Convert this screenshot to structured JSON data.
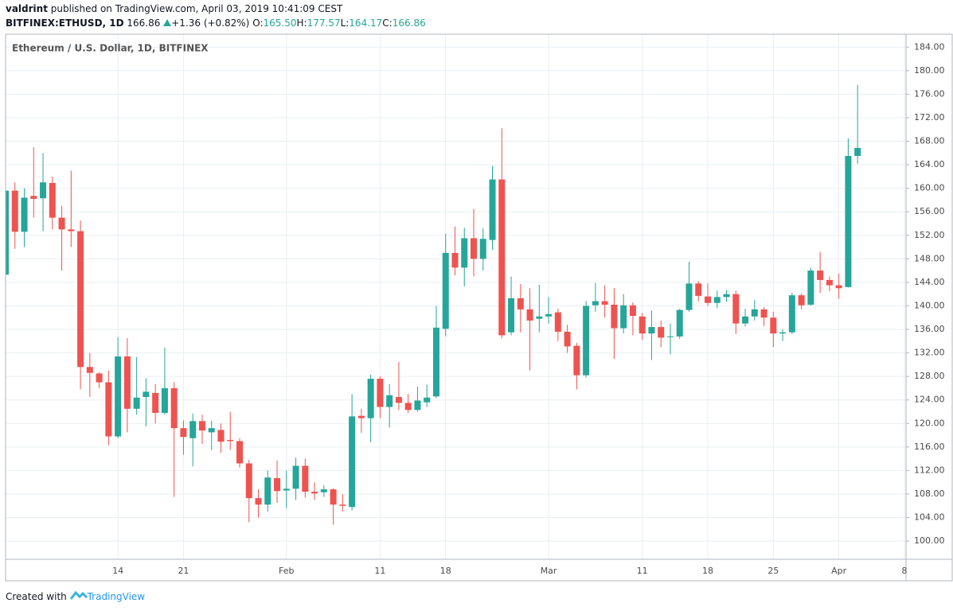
{
  "header": {
    "author": "valdrint",
    "published": "published on TradingView.com, April 03, 2019 10:41:09 CEST",
    "symbol": "BITFINEX:ETHUSD, 1D",
    "last": "166.86",
    "change": "+1.36 (+0.82%)",
    "ohlc": [
      {
        "label": "O:",
        "value": "165.50"
      },
      {
        "label": "H:",
        "value": "177.57"
      },
      {
        "label": "L:",
        "value": "164.17"
      },
      {
        "label": "C:",
        "value": "166.86"
      }
    ]
  },
  "footer": {
    "created": "Created with",
    "brand": "TradingView"
  },
  "chart_data": {
    "type": "candlestick",
    "title": "Ethereum / U.S. Dollar, 1D, BITFINEX",
    "up_color": "#26a69a",
    "down_color": "#ef5350",
    "grid": true,
    "categories": [
      null,
      null,
      null,
      null,
      null,
      null,
      null,
      null,
      null,
      null,
      null,
      null,
      "14",
      null,
      null,
      null,
      null,
      null,
      null,
      "21",
      null,
      null,
      null,
      null,
      null,
      null,
      null,
      null,
      null,
      null,
      "Feb",
      null,
      null,
      null,
      null,
      null,
      null,
      null,
      null,
      null,
      "11",
      null,
      null,
      null,
      null,
      null,
      null,
      "18",
      null,
      null,
      null,
      null,
      null,
      null,
      null,
      null,
      null,
      null,
      "Mar",
      null,
      null,
      null,
      null,
      null,
      null,
      null,
      null,
      null,
      "11",
      null,
      null,
      null,
      null,
      null,
      null,
      "18",
      null,
      null,
      null,
      null,
      null,
      null,
      "25",
      null,
      null,
      null,
      null,
      null,
      null,
      "Apr",
      null,
      null,
      null,
      null,
      null,
      null,
      "8"
    ],
    "open": [
      145.3,
      159.6,
      152.6,
      158.7,
      158.3,
      160.9,
      155,
      153,
      152.7,
      129.6,
      128.5,
      127,
      117.8,
      131.4,
      122.5,
      124.5,
      125.2,
      121.8,
      126,
      119.2,
      117.5,
      120.4,
      118.5,
      118.9,
      117.2,
      117,
      113.2,
      107.3,
      106.2,
      110.7,
      108.6,
      108.9,
      112.8,
      108.4,
      108.3,
      108.8,
      106.2,
      105.8,
      121.3,
      120.9,
      127.6,
      122.8,
      124.5,
      123.5,
      122.3,
      123.6,
      124.6,
      136.1,
      149,
      146.5,
      151.5,
      148,
      151.2,
      161.5,
      135.5,
      141.3,
      139.4,
      137.8,
      138.2,
      138.9,
      135.6,
      133.2,
      128.2,
      140.1,
      140.8,
      140.2,
      136.2,
      140.1,
      138.2,
      135.3,
      136.4,
      134.7,
      134.8,
      139.3,
      143.8,
      141.6,
      140.5,
      141.5,
      142,
      137,
      138.2,
      139.4,
      138,
      135.3,
      135.5,
      141.8,
      140.2,
      146,
      144.4,
      143.5,
      143.2,
      165.5,
      null,
      null,
      null,
      null,
      null
    ],
    "high": [
      160.5,
      161,
      160,
      167,
      166,
      162,
      157,
      163,
      154.5,
      132,
      128.7,
      129,
      134.7,
      134.5,
      131.3,
      127.7,
      126.7,
      132.9,
      127,
      120.5,
      121.7,
      121.5,
      120.5,
      120,
      122,
      117.5,
      113.8,
      108.8,
      112,
      113.7,
      112,
      114.2,
      114,
      110,
      109.5,
      109,
      108,
      125,
      122.5,
      128.3,
      128,
      126.7,
      130.5,
      125,
      126.3,
      126.6,
      140,
      152.3,
      153.5,
      153.3,
      156.5,
      153.2,
      163.8,
      170.2,
      145,
      143.7,
      143,
      143.6,
      141.5,
      139.5,
      136.8,
      133.7,
      140.8,
      143.9,
      143.5,
      143,
      142,
      140.6,
      138.8,
      139.2,
      137.5,
      137,
      139.5,
      147.5,
      144.2,
      143.8,
      142.6,
      142.7,
      142.6,
      139.5,
      141,
      139.8,
      139,
      136,
      142.2,
      142.1,
      146.5,
      149.2,
      145,
      145.5,
      168.5,
      177.57,
      null,
      null,
      null,
      null,
      null
    ],
    "low": [
      144.8,
      149.7,
      150,
      155,
      152.7,
      153,
      146,
      150,
      125.8,
      124.5,
      126,
      116.3,
      117.5,
      118.5,
      121.5,
      119.5,
      120,
      121.5,
      107.5,
      114.7,
      112.7,
      116.5,
      115.5,
      115,
      115.5,
      112.5,
      103.2,
      104,
      105,
      106.5,
      105.6,
      107,
      107.4,
      107,
      107.5,
      102.8,
      105,
      105.2,
      118.4,
      116.8,
      120.9,
      119.3,
      122.3,
      121.8,
      122,
      122.8,
      124.3,
      134.8,
      145.2,
      143.3,
      145,
      146,
      149.5,
      134.5,
      135,
      135.5,
      129,
      135.5,
      137,
      134,
      132,
      125.8,
      127.8,
      139,
      138,
      131,
      135.3,
      135,
      134.2,
      130.8,
      133,
      131.8,
      134.4,
      139,
      140.8,
      140,
      139.6,
      140.7,
      135.2,
      136.5,
      137.5,
      136.6,
      133,
      134,
      135.2,
      139.4,
      140,
      142.2,
      142.5,
      141.2,
      143.1,
      164.17,
      null,
      null,
      null,
      null,
      null
    ],
    "close": [
      159.6,
      152.6,
      158.4,
      158.2,
      161,
      155,
      153,
      152.7,
      129.6,
      128.6,
      127,
      117.8,
      131.4,
      122.5,
      124.4,
      125.4,
      121.8,
      126,
      119.2,
      117.7,
      120.4,
      118.8,
      119.2,
      116.9,
      117,
      113.2,
      107.3,
      106.2,
      110.8,
      108.5,
      108.9,
      112.8,
      108.4,
      108.1,
      108.8,
      106.2,
      106,
      121.2,
      120.9,
      127.6,
      122.8,
      124.8,
      123.5,
      122.3,
      123.9,
      124.4,
      136.3,
      149,
      146.5,
      151.5,
      148,
      151.4,
      161.5,
      135,
      141.3,
      139.4,
      137.5,
      138.2,
      138.6,
      135.6,
      133.1,
      128.2,
      140,
      140.8,
      140.2,
      136.2,
      140.1,
      138.3,
      135.3,
      136.4,
      134.6,
      134.8,
      139.3,
      143.8,
      141.7,
      140.5,
      141.5,
      142,
      137,
      138.2,
      139.4,
      138,
      135.3,
      135.5,
      141.8,
      140.1,
      146,
      144.4,
      143.5,
      143,
      165.5,
      166.86,
      null,
      null,
      null,
      null,
      null
    ],
    "ylim": [
      96.9,
      186.2
    ],
    "yticks": [
      {
        "value": 100,
        "label": "100.00"
      },
      {
        "value": 104,
        "label": "104.00"
      },
      {
        "value": 108,
        "label": "108.00"
      },
      {
        "value": 112,
        "label": "112.00"
      },
      {
        "value": 116,
        "label": "116.00"
      },
      {
        "value": 120,
        "label": "120.00"
      },
      {
        "value": 124,
        "label": "124.00"
      },
      {
        "value": 128,
        "label": "128.00"
      },
      {
        "value": 132,
        "label": "132.00"
      },
      {
        "value": 136,
        "label": "136.00"
      },
      {
        "value": 140,
        "label": "140.00"
      },
      {
        "value": 144,
        "label": "144.00"
      },
      {
        "value": 148,
        "label": "148.00"
      },
      {
        "value": 152,
        "label": "152.00"
      },
      {
        "value": 156,
        "label": "156.00"
      },
      {
        "value": 160,
        "label": "160.00"
      },
      {
        "value": 164,
        "label": "164.00"
      },
      {
        "value": 168,
        "label": "168.00"
      },
      {
        "value": 172,
        "label": "172.00"
      },
      {
        "value": 176,
        "label": "176.00"
      },
      {
        "value": 180,
        "label": "180.00"
      },
      {
        "value": 184,
        "label": "184.00"
      }
    ]
  }
}
